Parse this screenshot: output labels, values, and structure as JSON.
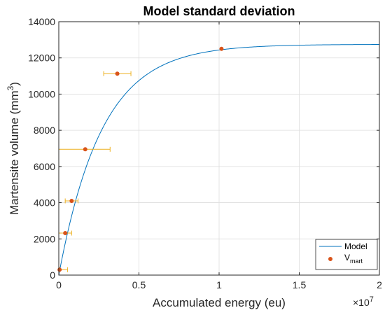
{
  "chart_data": {
    "type": "scatter",
    "title": "Model standard deviation",
    "xlabel": "Accumulated energy (eu)",
    "ylabel": {
      "text": "Martensite volume (mm",
      "sup": "3",
      "tail": ")"
    },
    "x_exponent": {
      "base": "×10",
      "power": "7"
    },
    "xlim": [
      0,
      20000000
    ],
    "ylim": [
      0,
      14000
    ],
    "x_ticks": [
      0,
      5000000,
      10000000,
      15000000,
      20000000
    ],
    "x_tick_labels": [
      "0",
      "0.5",
      "1",
      "1.5",
      "2"
    ],
    "y_ticks": [
      0,
      2000,
      4000,
      6000,
      8000,
      10000,
      12000,
      14000
    ],
    "y_tick_labels": [
      "0",
      "2000",
      "4000",
      "6000",
      "8000",
      "10000",
      "12000",
      "14000"
    ],
    "grid": true,
    "legend_position": "bottom-right",
    "colors": {
      "model": "#0072BD",
      "points": "#D95319",
      "errorbars": "#EDB120"
    },
    "series": [
      {
        "name": "Model",
        "kind": "line",
        "function": "y = 12750 * (1 - exp(-x / 2700000))"
      },
      {
        "name": {
          "base": "V",
          "sub": "mart"
        },
        "kind": "scatter",
        "points": [
          {
            "x": 50000,
            "y": 300,
            "xerr_low": 0,
            "xerr_high": 500000
          },
          {
            "x": 400000,
            "y": 2320,
            "xerr_low": 400000,
            "xerr_high": 400000
          },
          {
            "x": 800000,
            "y": 4100,
            "xerr_low": 400000,
            "xerr_high": 400000
          },
          {
            "x": 1650000,
            "y": 6950,
            "xerr_low": 1650000,
            "xerr_high": 1550000
          },
          {
            "x": 3650000,
            "y": 11130,
            "xerr_low": 850000,
            "xerr_high": 850000
          },
          {
            "x": 10150000,
            "y": 12500,
            "xerr_low": 0,
            "xerr_high": 0
          }
        ]
      }
    ]
  }
}
